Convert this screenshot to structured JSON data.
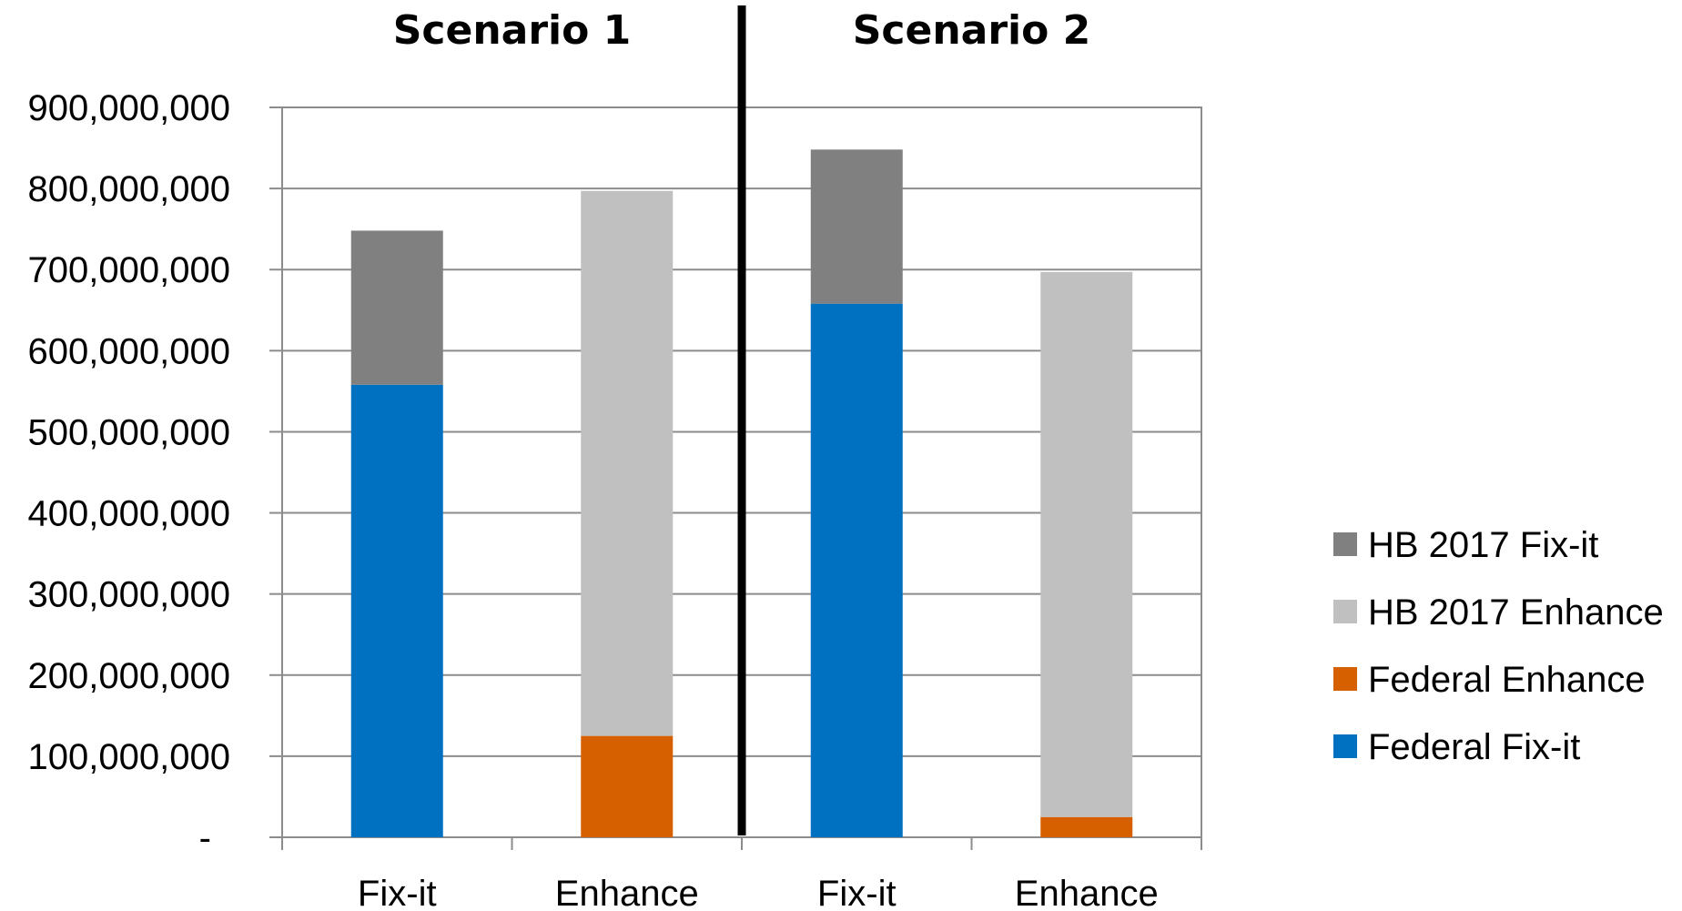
{
  "chart_data": {
    "type": "bar",
    "stacked": true,
    "categories": [
      "Fix-it",
      "Enhance",
      "Fix-it",
      "Enhance"
    ],
    "groups": [
      {
        "label": "Scenario 1",
        "categories": [
          0,
          1
        ]
      },
      {
        "label": "Scenario 2",
        "categories": [
          2,
          3
        ]
      }
    ],
    "series": [
      {
        "name": "Federal Fix-it",
        "color": "#0070C0",
        "values": [
          558000000,
          0,
          658000000,
          0
        ]
      },
      {
        "name": "Federal Enhance",
        "color": "#D65F00",
        "values": [
          0,
          125000000,
          0,
          25000000
        ]
      },
      {
        "name": "HB 2017 Fix-it",
        "color": "#808080",
        "values": [
          190000000,
          0,
          190000000,
          0
        ]
      },
      {
        "name": "HB 2017 Enhance",
        "color": "#C0C0C0",
        "values": [
          0,
          672000000,
          0,
          672000000
        ]
      }
    ],
    "legend_order": [
      "HB 2017 Fix-it",
      "HB 2017 Enhance",
      "Federal Enhance",
      "Federal Fix-it"
    ],
    "legend_position": "right",
    "ylim": [
      0,
      900000000
    ],
    "yticks": [
      0,
      100000000,
      200000000,
      300000000,
      400000000,
      500000000,
      600000000,
      700000000,
      800000000,
      900000000
    ],
    "ytick_labels": [
      "-",
      "100,000,000",
      "200,000,000",
      "300,000,000",
      "400,000,000",
      "500,000,000",
      "600,000,000",
      "700,000,000",
      "800,000,000",
      "900,000,000"
    ],
    "grid": true,
    "title": "",
    "xlabel": "",
    "ylabel": ""
  }
}
